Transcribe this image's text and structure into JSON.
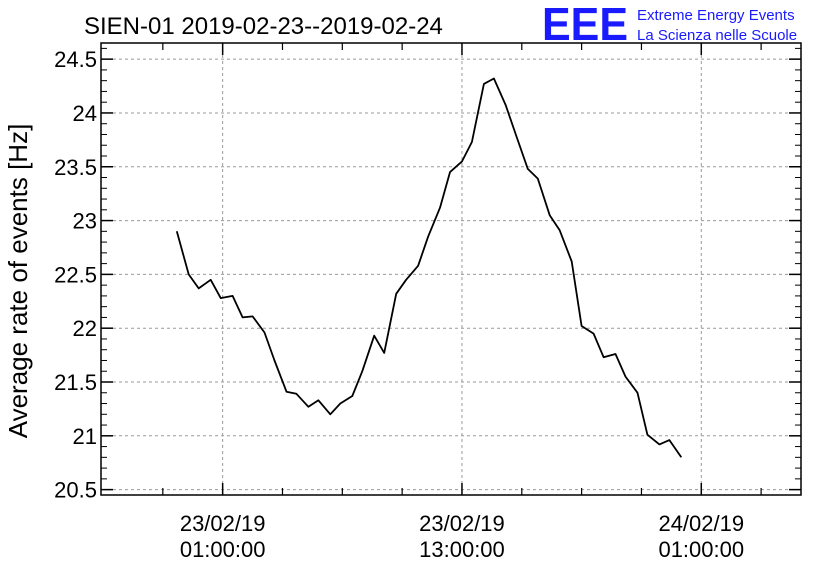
{
  "chart_data": {
    "type": "line",
    "title": "SIEN-01 2019-02-23--2019-02-24",
    "ylabel": "Average rate of events [Hz]",
    "xlabel": "",
    "ylim": [
      20.45,
      24.65
    ],
    "y_ticks": [
      20.5,
      21,
      21.5,
      22,
      22.5,
      23,
      23.5,
      24,
      24.5
    ],
    "y_tick_labels": [
      "20.5",
      "21",
      "21.5",
      "22",
      "22.5",
      "23",
      "23.5",
      "24",
      "24.5"
    ],
    "x_unit": "hours",
    "xlim": [
      -6.1,
      29
    ],
    "x_major_ticks": [
      {
        "x": 0,
        "line1": "23/02/19",
        "line2": "01:00:00"
      },
      {
        "x": 12,
        "line1": "23/02/19",
        "line2": "13:00:00"
      },
      {
        "x": 24,
        "line1": "24/02/19",
        "line2": "01:00:00"
      }
    ],
    "x_minor_ticks": [
      -3,
      3,
      6,
      9,
      15,
      18,
      21,
      27
    ],
    "grid": true,
    "series": [
      {
        "x": [
          -2.3,
          -1.7,
          -1.2,
          -0.6,
          -0.1,
          0.5,
          1.0,
          1.5,
          2.1,
          2.6,
          3.2,
          3.7,
          4.3,
          4.8,
          5.4,
          5.9,
          6.5,
          7.0,
          7.6,
          8.1,
          8.7,
          9.2,
          9.8,
          10.3,
          10.9,
          11.4,
          12.0,
          12.5,
          13.1,
          13.6,
          14.2,
          14.7,
          15.3,
          15.8,
          16.4,
          16.9,
          17.5,
          18.0,
          18.6,
          19.1,
          19.7,
          20.2,
          20.8,
          21.3,
          21.9,
          22.4,
          23.0,
          23.5,
          24.1
        ],
        "y": [
          22.9,
          22.5,
          22.37,
          22.45,
          22.28,
          22.3,
          22.1,
          22.11,
          21.96,
          21.7,
          21.41,
          21.39,
          21.27,
          21.33,
          21.2,
          21.3,
          21.37,
          21.6,
          21.93,
          21.77,
          22.32,
          22.45,
          22.58,
          22.85,
          23.12,
          23.45,
          23.55,
          23.73,
          24.27,
          24.32,
          24.07,
          23.8,
          23.48,
          23.39,
          23.05,
          22.91,
          22.62,
          22.02,
          21.95,
          21.73,
          21.76,
          21.55,
          21.4,
          21.01,
          20.92,
          20.96,
          20.8,
          null,
          null
        ]
      }
    ],
    "line_color": "#000000"
  },
  "logo": {
    "mark": "EEE",
    "line1": "Extreme Energy Events",
    "line2": "La Scienza nelle Scuole",
    "color": "#1a1aff"
  }
}
